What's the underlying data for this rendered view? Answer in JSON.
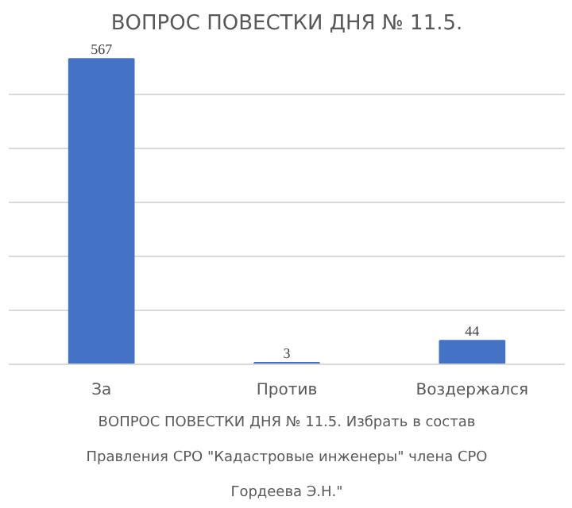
{
  "chart_data": {
    "type": "bar",
    "title": "ВОПРОС ПОВЕСТКИ ДНЯ № 11.5.",
    "categories": [
      "За",
      "Против",
      "Воздержался"
    ],
    "series": [
      {
        "color": "#4472c4",
        "values": [
          567,
          3,
          44
        ]
      }
    ],
    "grid": "y",
    "data_labels": true,
    "tick_labels": "x",
    "annotations": [
      "ВОПРОС ПОВЕСТКИ ДНЯ № 11.5. Избрать в состав Правления СРО \"Кадастровые инженеры\" члена СРО Гордеева Э.Н.\""
    ]
  }
}
